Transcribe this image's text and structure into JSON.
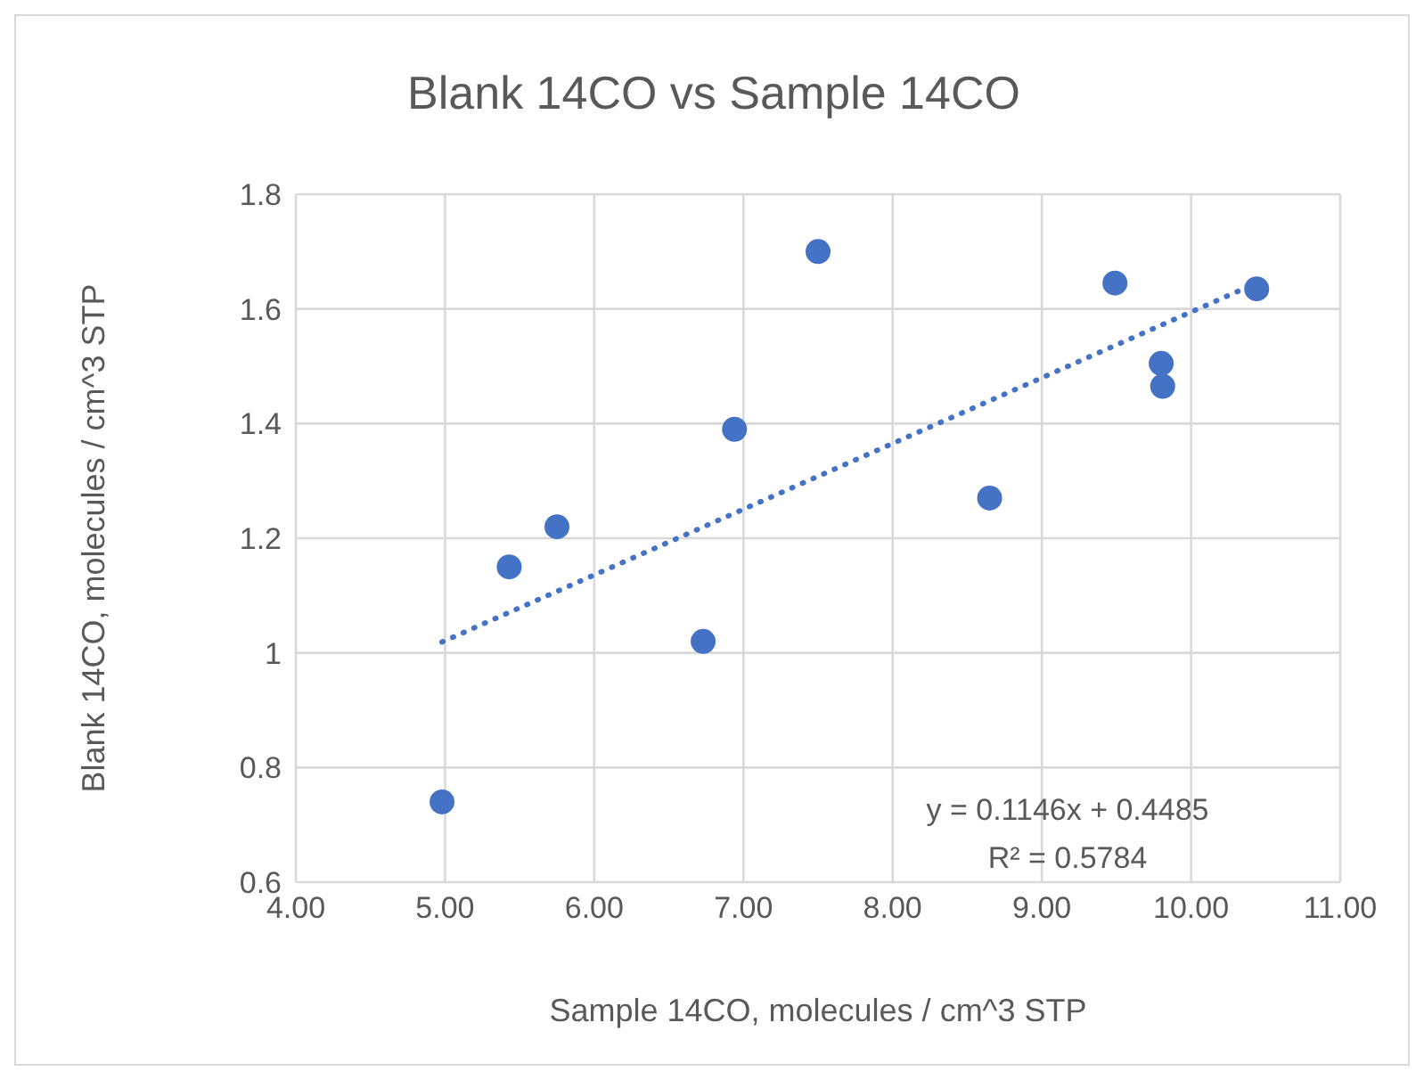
{
  "chart_data": {
    "type": "scatter",
    "title": "Blank 14CO vs Sample 14CO",
    "xlabel": "Sample 14CO, molecules / cm^3 STP",
    "ylabel": "Blank 14CO, molecules / cm^3 STP",
    "series": [
      {
        "color": "#4472c4",
        "marker": "circle",
        "x": [
          4.98,
          5.43,
          5.75,
          6.73,
          6.94,
          7.5,
          8.65,
          9.49,
          9.8,
          9.81,
          10.44
        ],
        "values": [
          0.74,
          1.15,
          1.22,
          1.02,
          1.39,
          1.7,
          1.27,
          1.645,
          1.505,
          1.465,
          1.635
        ]
      },
      {
        "type": "line",
        "color": "#4472c4",
        "line_style": "dotted",
        "marker": "none",
        "x": [
          4.98,
          10.44
        ],
        "values": [
          1.019,
          1.645
        ]
      }
    ],
    "xlim": [
      4,
      11
    ],
    "xticks": [
      {
        "value": 4,
        "label": "4.00"
      },
      {
        "value": 5,
        "label": "5.00"
      },
      {
        "value": 6,
        "label": "6.00"
      },
      {
        "value": 7,
        "label": "7.00"
      },
      {
        "value": 8,
        "label": "8.00"
      },
      {
        "value": 9,
        "label": "9.00"
      },
      {
        "value": 10,
        "label": "10.00"
      },
      {
        "value": 11,
        "label": "11.00"
      }
    ],
    "ylim": [
      0.6,
      1.8
    ],
    "yticks": [
      0.6,
      0.8,
      1,
      1.2,
      1.4,
      1.6,
      1.8
    ],
    "grid": true,
    "legend": false,
    "annotations": [
      "y = 0.1146x + 0.4485",
      "R² = 0.5784"
    ]
  }
}
